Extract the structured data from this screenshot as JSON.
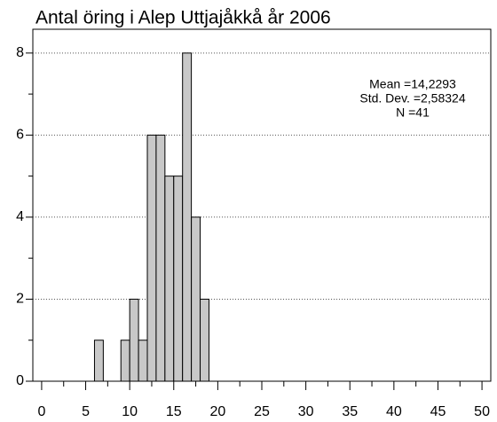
{
  "chart_data": {
    "type": "histogram",
    "title": "Antal öring i Alep Uttjajåkkå år 2006",
    "bins": [
      6,
      7,
      8,
      9,
      10,
      11,
      12,
      13,
      14,
      15,
      16,
      17,
      18,
      19
    ],
    "values": [
      1,
      0,
      0,
      1,
      2,
      1,
      6,
      6,
      5,
      5,
      8,
      4,
      2
    ],
    "color": "#c8c8c8",
    "xlim": [
      -1,
      51
    ],
    "xticks": [
      0,
      5,
      10,
      15,
      20,
      25,
      30,
      35,
      40,
      45,
      50
    ],
    "xticks_minor": [
      2.5,
      7.5,
      12.5,
      17.5,
      22.5,
      27.5,
      32.5,
      37.5,
      42.5,
      47.5
    ],
    "ylim": [
      0,
      8.58
    ],
    "yticks": [
      0,
      2,
      4,
      6,
      8
    ],
    "yticks_minor": [
      1,
      3,
      5,
      7
    ],
    "grid": true,
    "annotations": [
      "Mean =14,2293",
      "Std. Dev. =2,58324",
      "N =41"
    ]
  }
}
